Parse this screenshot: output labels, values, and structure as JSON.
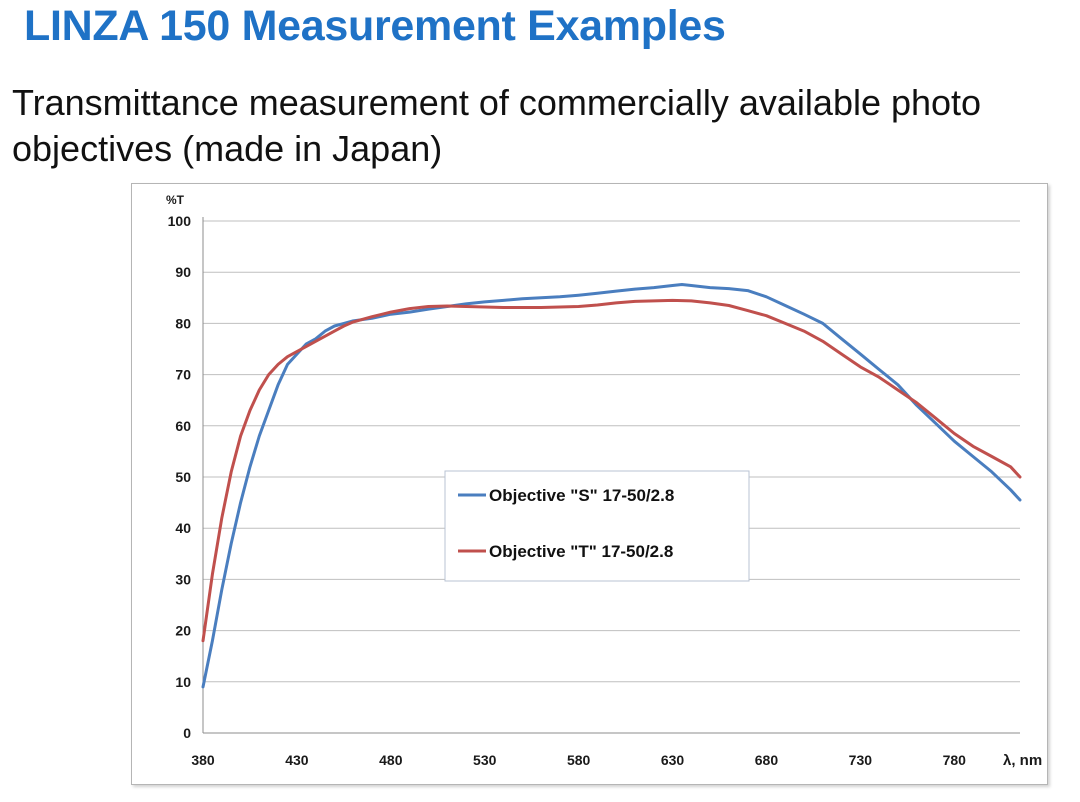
{
  "slide": {
    "title": "LINZA 150 Measurement Examples",
    "subtitle": "Transmittance measurement of commercially available photo objectives (made in Japan)"
  },
  "chart_data": {
    "type": "line",
    "title": "",
    "xlabel": "λ, nm",
    "ylabel": "%T",
    "xlim": [
      380,
      815
    ],
    "ylim": [
      0,
      100
    ],
    "xticks": [
      380,
      430,
      480,
      530,
      580,
      630,
      680,
      730,
      780
    ],
    "yticks": [
      0,
      10,
      20,
      30,
      40,
      50,
      60,
      70,
      80,
      90,
      100
    ],
    "grid": "horizontal",
    "legend_position": "center-bottom",
    "series": [
      {
        "name": "Objective \"S\" 17-50/2.8",
        "color": "#4a7ebf",
        "x": [
          380,
          385,
          390,
          395,
          400,
          405,
          410,
          415,
          420,
          425,
          430,
          435,
          440,
          445,
          450,
          455,
          460,
          470,
          480,
          490,
          500,
          510,
          520,
          530,
          540,
          550,
          560,
          570,
          580,
          590,
          600,
          610,
          620,
          630,
          635,
          640,
          650,
          660,
          670,
          680,
          690,
          700,
          710,
          720,
          730,
          740,
          750,
          760,
          770,
          780,
          790,
          800,
          810,
          815
        ],
        "y": [
          9,
          18,
          28,
          37,
          45,
          52,
          58,
          63,
          68,
          72,
          74,
          76,
          77,
          78.5,
          79.5,
          80,
          80.5,
          81,
          81.8,
          82.2,
          82.8,
          83.3,
          83.8,
          84.2,
          84.5,
          84.8,
          85,
          85.2,
          85.5,
          85.9,
          86.3,
          86.7,
          87,
          87.4,
          87.6,
          87.4,
          87,
          86.8,
          86.4,
          85.2,
          83.5,
          81.8,
          80,
          77,
          74,
          71,
          68,
          64,
          60.5,
          57,
          54,
          51,
          47.5,
          45.5
        ]
      },
      {
        "name": "Objective \"T\" 17-50/2.8",
        "color": "#c0504d",
        "x": [
          380,
          385,
          390,
          395,
          400,
          405,
          410,
          415,
          420,
          425,
          430,
          435,
          440,
          445,
          450,
          455,
          460,
          470,
          480,
          490,
          500,
          510,
          520,
          530,
          540,
          550,
          560,
          570,
          580,
          590,
          600,
          610,
          620,
          630,
          640,
          650,
          660,
          670,
          680,
          690,
          700,
          710,
          720,
          730,
          740,
          750,
          760,
          770,
          780,
          790,
          800,
          810,
          815
        ],
        "y": [
          18,
          31,
          42,
          51,
          58,
          63,
          67,
          70,
          72,
          73.5,
          74.5,
          75.5,
          76.5,
          77.5,
          78.5,
          79.5,
          80.3,
          81.3,
          82.2,
          82.9,
          83.3,
          83.4,
          83.3,
          83.2,
          83.1,
          83.1,
          83.1,
          83.2,
          83.3,
          83.6,
          84,
          84.3,
          84.4,
          84.5,
          84.4,
          84,
          83.5,
          82.5,
          81.5,
          80,
          78.5,
          76.5,
          74,
          71.5,
          69.5,
          67,
          64.5,
          61.5,
          58.5,
          56,
          54,
          52,
          50
        ]
      }
    ]
  }
}
